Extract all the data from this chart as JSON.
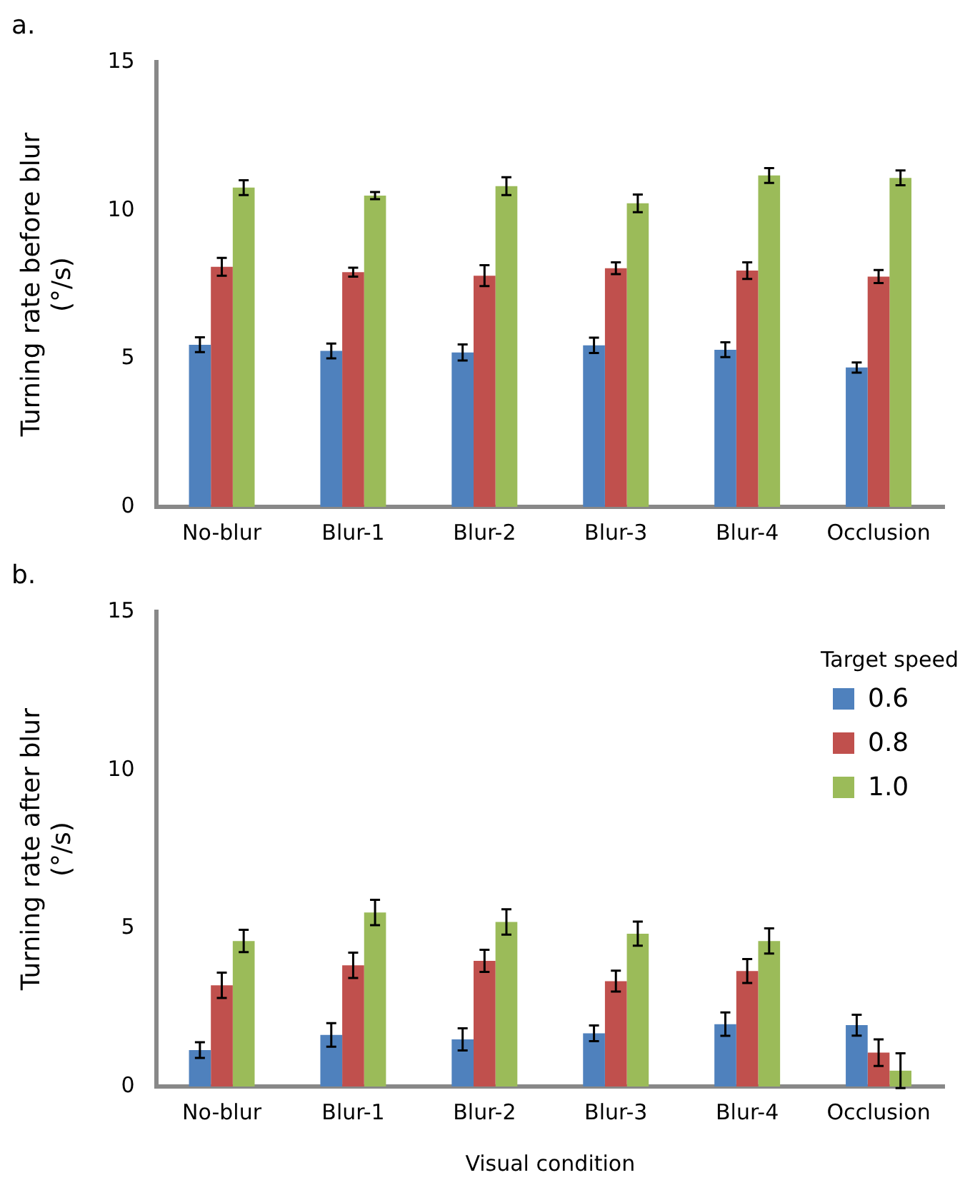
{
  "chart_data": [
    {
      "type": "bar",
      "title": "a.",
      "ylabel": "Turning rate before blur\n(°/s)",
      "categories": [
        "No-blur",
        "Blur-1",
        "Blur-2",
        "Blur-3",
        "Blur-4",
        "Occlusion"
      ],
      "series": [
        {
          "color": "#4f81bd",
          "values": [
            5.47,
            5.26,
            5.21,
            5.45,
            5.3,
            4.7
          ],
          "errors": [
            0.25,
            0.25,
            0.27,
            0.26,
            0.25,
            0.17
          ]
        },
        {
          "color": "#c0504d",
          "values": [
            8.1,
            7.92,
            7.8,
            8.05,
            7.97,
            7.77
          ],
          "errors": [
            0.3,
            0.15,
            0.35,
            0.2,
            0.28,
            0.22
          ]
        },
        {
          "color": "#9bbb59",
          "values": [
            10.77,
            10.5,
            10.82,
            10.24,
            11.18,
            11.1
          ],
          "errors": [
            0.25,
            0.12,
            0.3,
            0.3,
            0.25,
            0.25
          ]
        }
      ],
      "ylim": [
        0,
        15
      ],
      "yticks": [
        0,
        5,
        10,
        15
      ],
      "grid": false,
      "legend": false
    },
    {
      "type": "bar",
      "title": "b.",
      "ylabel": "Turning rate after blur\n(°/s)",
      "xlabel": "Visual condition",
      "legend_title": "Target speed",
      "categories": [
        "No-blur",
        "Blur-1",
        "Blur-2",
        "Blur-3",
        "Blur-4",
        "Occlusion"
      ],
      "series": [
        {
          "name": "0.6",
          "color": "#4f81bd",
          "values": [
            1.15,
            1.63,
            1.49,
            1.68,
            1.97,
            1.94
          ],
          "errors": [
            0.25,
            0.37,
            0.35,
            0.25,
            0.37,
            0.33
          ]
        },
        {
          "name": "0.8",
          "color": "#c0504d",
          "values": [
            3.2,
            3.83,
            3.97,
            3.33,
            3.65,
            1.07
          ],
          "errors": [
            0.4,
            0.4,
            0.35,
            0.33,
            0.38,
            0.42
          ]
        },
        {
          "name": "1.0",
          "color": "#9bbb59",
          "values": [
            4.6,
            5.5,
            5.2,
            4.83,
            4.6,
            0.5
          ],
          "errors": [
            0.35,
            0.4,
            0.4,
            0.38,
            0.4,
            0.55
          ]
        }
      ],
      "ylim": [
        0,
        15
      ],
      "yticks": [
        0,
        5,
        10,
        15
      ],
      "grid": false,
      "legend": "top right"
    }
  ]
}
